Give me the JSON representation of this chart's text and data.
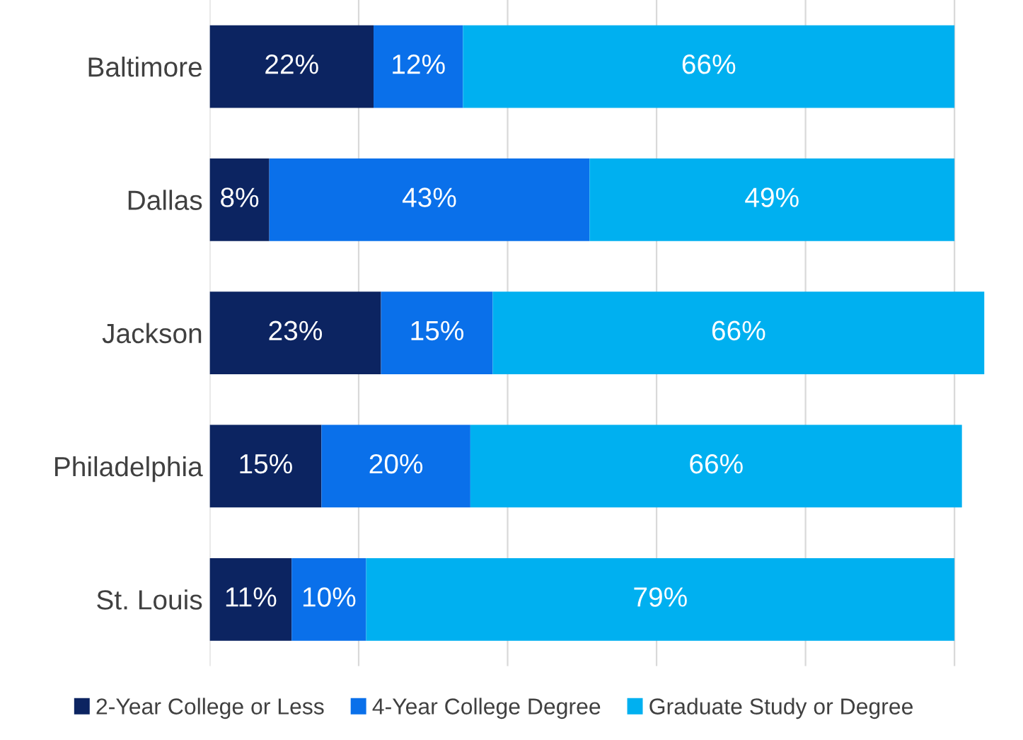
{
  "chart_data": {
    "type": "bar",
    "orientation": "horizontal",
    "stacked": true,
    "categories": [
      "Baltimore",
      "Dallas",
      "Jackson",
      "Philadelphia",
      "St. Louis"
    ],
    "series": [
      {
        "name": "2-Year College or Less",
        "color": "#0c2461",
        "values": [
          22,
          8,
          23,
          15,
          11
        ],
        "value_labels": [
          "22%",
          "8%",
          "23%",
          "15%",
          "11%"
        ]
      },
      {
        "name": "4-Year College Degree",
        "color": "#0a70ea",
        "values": [
          12,
          43,
          15,
          20,
          10
        ],
        "value_labels": [
          "12%",
          "43%",
          "15%",
          "20%",
          "10%"
        ]
      },
      {
        "name": "Graduate Study or Degree",
        "color": "#00b0f0",
        "values": [
          66,
          49,
          66,
          66,
          79
        ],
        "value_labels": [
          "66%",
          "49%",
          "66%",
          "66%",
          "79%"
        ]
      }
    ],
    "grid": "x",
    "legend": "bottom",
    "tick_labels": "y"
  }
}
